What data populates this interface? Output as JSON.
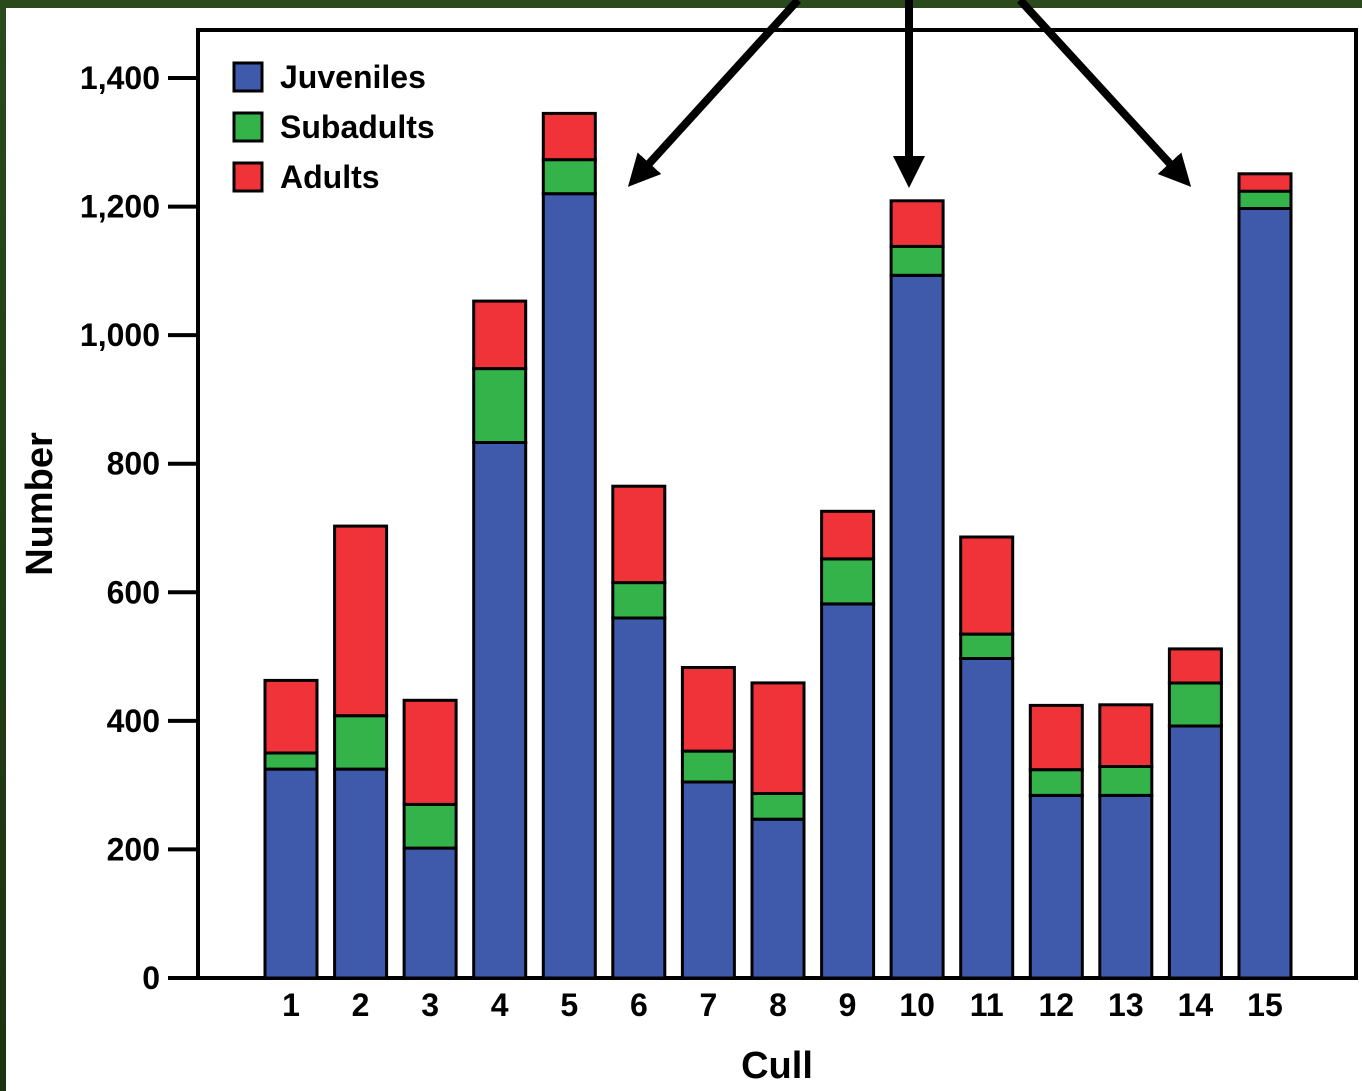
{
  "chart_data": {
    "type": "bar",
    "stacked": true,
    "xlabel": "Cull",
    "ylabel": "Number",
    "ylim": [
      0,
      1400
    ],
    "yticks": [
      0,
      200,
      400,
      600,
      800,
      1000,
      1200,
      1400
    ],
    "ytick_labels": [
      "0",
      "200",
      "400",
      "600",
      "800",
      "1,000",
      "1,200",
      "1,400"
    ],
    "categories": [
      "1",
      "2",
      "3",
      "4",
      "5",
      "6",
      "7",
      "8",
      "9",
      "10",
      "11",
      "12",
      "13",
      "14",
      "15"
    ],
    "series": [
      {
        "name": "Juveniles",
        "color": "#3f5aab",
        "values": [
          325,
          325,
          202,
          833,
          1220,
          560,
          305,
          247,
          582,
          1093,
          497,
          284,
          284,
          392,
          1197
        ]
      },
      {
        "name": "Subadults",
        "color": "#34b34a",
        "values": [
          25,
          83,
          68,
          115,
          53,
          55,
          48,
          40,
          70,
          45,
          38,
          40,
          45,
          67,
          27
        ]
      },
      {
        "name": "Adults",
        "color": "#ef3338",
        "values": [
          113,
          295,
          162,
          105,
          72,
          150,
          130,
          172,
          74,
          71,
          151,
          100,
          96,
          53,
          27
        ]
      }
    ],
    "legend_position": "top-left",
    "grid": false,
    "annotations": [
      {
        "type": "arrow",
        "points_to_category": "6"
      },
      {
        "type": "arrow",
        "points_to_category": "10"
      },
      {
        "type": "arrow",
        "points_to_category": "14"
      }
    ]
  }
}
